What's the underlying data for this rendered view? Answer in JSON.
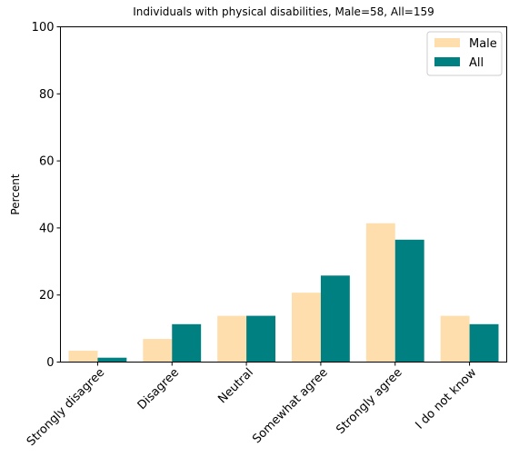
{
  "chart_data": {
    "type": "bar",
    "title": "Individuals with physical disabilities, Male=58, All=159",
    "xlabel": "",
    "ylabel": "Percent",
    "ylim": [
      0,
      100
    ],
    "yticks": [
      "0",
      "20",
      "40",
      "60",
      "80",
      "100"
    ],
    "grid": false,
    "legend_position": "top-right",
    "categories": [
      "Strongly disagree",
      "Disagree",
      "Neutral",
      "Somewhat agree",
      "Strongly agree",
      "I do not know"
    ],
    "series": [
      {
        "name": "Male",
        "color": "#ffdead",
        "values": [
          3.4,
          6.9,
          13.8,
          20.7,
          41.4,
          13.8
        ]
      },
      {
        "name": "All",
        "color": "#008080",
        "values": [
          1.3,
          11.3,
          13.8,
          25.8,
          36.5,
          11.3
        ]
      }
    ]
  }
}
